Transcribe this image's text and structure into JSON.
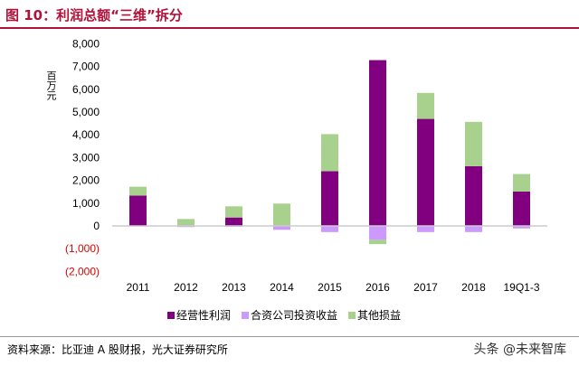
{
  "title": "图 10：利润总额“三维”拆分",
  "source": "资料来源：比亚迪 A 股财报，光大证券研究所",
  "watermark": "头条 @未来智库",
  "chart_data": {
    "type": "bar",
    "stacked": true,
    "ylabel": "百万元",
    "ylim": [
      -2000,
      8000
    ],
    "yticks": [
      -2000,
      -1000,
      0,
      1000,
      2000,
      3000,
      4000,
      5000,
      6000,
      7000,
      8000
    ],
    "ytick_labels": [
      "(2,000)",
      "(1,000)",
      "0",
      "1,000",
      "2,000",
      "3,000",
      "4,000",
      "5,000",
      "6,000",
      "7,000",
      "8,000"
    ],
    "negative_label_color": "#e00000",
    "categories": [
      "2011",
      "2012",
      "2013",
      "2014",
      "2015",
      "2016",
      "2017",
      "2018",
      "19Q1-3"
    ],
    "legend_position": "bottom",
    "grid": false,
    "series": [
      {
        "name": "经营性利润",
        "color": "#800080",
        "values": [
          1330,
          0,
          370,
          0,
          2400,
          7280,
          4700,
          2620,
          1510
        ]
      },
      {
        "name": "合资公司投资收益",
        "color": "#cc99ff",
        "values": [
          -20,
          -50,
          -40,
          -170,
          -270,
          -610,
          -270,
          -270,
          -110
        ]
      },
      {
        "name": "其他损益",
        "color": "#a9d18e",
        "values": [
          390,
          305,
          490,
          980,
          1630,
          -190,
          1140,
          1950,
          770
        ]
      }
    ]
  }
}
